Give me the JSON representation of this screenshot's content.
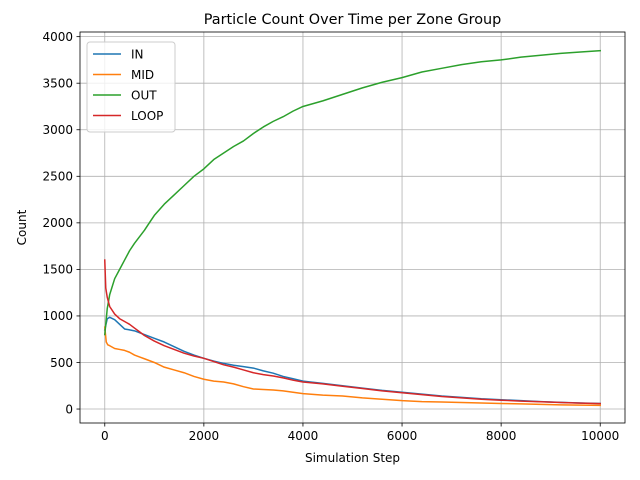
{
  "chart_data": {
    "type": "line",
    "title": "Particle Count Over Time per Zone Group",
    "xlabel": "Simulation Step",
    "ylabel": "Count",
    "xlim": [
      -500,
      10500
    ],
    "ylim": [
      -150,
      4050
    ],
    "xticks": [
      0,
      2000,
      4000,
      6000,
      8000,
      10000
    ],
    "yticks": [
      0,
      500,
      1000,
      1500,
      2000,
      2500,
      3000,
      3500,
      4000
    ],
    "grid": true,
    "legend_position": "top-left",
    "series": [
      {
        "name": "IN",
        "color": "#1f77b4",
        "x": [
          0,
          50,
          100,
          200,
          300,
          400,
          500,
          600,
          700,
          800,
          1000,
          1200,
          1400,
          1600,
          1800,
          2000,
          2200,
          2400,
          2600,
          2800,
          3000,
          3200,
          3400,
          3600,
          3800,
          4000,
          4400,
          4800,
          5200,
          5600,
          6000,
          6400,
          6800,
          7200,
          7600,
          8000,
          8400,
          8800,
          9200,
          9600,
          10000
        ],
        "y": [
          850,
          970,
          985,
          960,
          910,
          860,
          850,
          840,
          820,
          800,
          760,
          720,
          670,
          620,
          580,
          545,
          515,
          490,
          470,
          455,
          440,
          410,
          385,
          350,
          325,
          300,
          275,
          250,
          225,
          200,
          180,
          160,
          140,
          125,
          110,
          100,
          90,
          80,
          72,
          65,
          60
        ]
      },
      {
        "name": "MID",
        "color": "#ff7f0e",
        "x": [
          0,
          30,
          60,
          100,
          200,
          300,
          400,
          500,
          600,
          700,
          800,
          1000,
          1200,
          1400,
          1600,
          1800,
          2000,
          2200,
          2400,
          2600,
          2800,
          3000,
          3200,
          3400,
          3600,
          3800,
          4000,
          4400,
          4800,
          5200,
          5600,
          6000,
          6400,
          6800,
          7200,
          7600,
          8000,
          8400,
          8800,
          9200,
          9600,
          10000
        ],
        "y": [
          880,
          720,
          690,
          680,
          650,
          640,
          630,
          610,
          580,
          560,
          540,
          500,
          450,
          420,
          390,
          350,
          320,
          300,
          290,
          270,
          240,
          215,
          210,
          205,
          195,
          180,
          165,
          150,
          140,
          120,
          105,
          90,
          80,
          75,
          70,
          65,
          60,
          55,
          50,
          45,
          42,
          40
        ]
      },
      {
        "name": "OUT",
        "color": "#2ca02c",
        "x": [
          0,
          50,
          100,
          200,
          300,
          400,
          500,
          600,
          700,
          800,
          900,
          1000,
          1200,
          1400,
          1600,
          1800,
          2000,
          2200,
          2400,
          2600,
          2800,
          3000,
          3200,
          3400,
          3600,
          3800,
          4000,
          4400,
          4800,
          5200,
          5600,
          6000,
          6400,
          6800,
          7200,
          7600,
          8000,
          8400,
          8800,
          9200,
          9600,
          10000
        ],
        "y": [
          800,
          1080,
          1230,
          1400,
          1500,
          1600,
          1700,
          1780,
          1850,
          1920,
          2000,
          2080,
          2200,
          2300,
          2400,
          2500,
          2580,
          2680,
          2750,
          2820,
          2880,
          2960,
          3030,
          3090,
          3140,
          3200,
          3250,
          3310,
          3380,
          3450,
          3510,
          3560,
          3620,
          3660,
          3700,
          3730,
          3750,
          3780,
          3800,
          3820,
          3835,
          3850
        ]
      },
      {
        "name": "LOOP",
        "color": "#d62728",
        "x": [
          0,
          20,
          50,
          100,
          200,
          300,
          400,
          500,
          600,
          700,
          800,
          1000,
          1200,
          1400,
          1600,
          1800,
          2000,
          2200,
          2400,
          2600,
          2800,
          3000,
          3200,
          3400,
          3600,
          3800,
          4000,
          4400,
          4800,
          5200,
          5600,
          6000,
          6400,
          6800,
          7200,
          7600,
          8000,
          8400,
          8800,
          9200,
          9600,
          10000
        ],
        "y": [
          1600,
          1300,
          1200,
          1100,
          1020,
          970,
          940,
          910,
          870,
          830,
          790,
          730,
          680,
          640,
          600,
          570,
          545,
          510,
          475,
          450,
          420,
          390,
          370,
          355,
          335,
          310,
          290,
          270,
          245,
          220,
          195,
          175,
          155,
          135,
          120,
          105,
          95,
          85,
          78,
          70,
          63,
          58
        ]
      }
    ]
  }
}
